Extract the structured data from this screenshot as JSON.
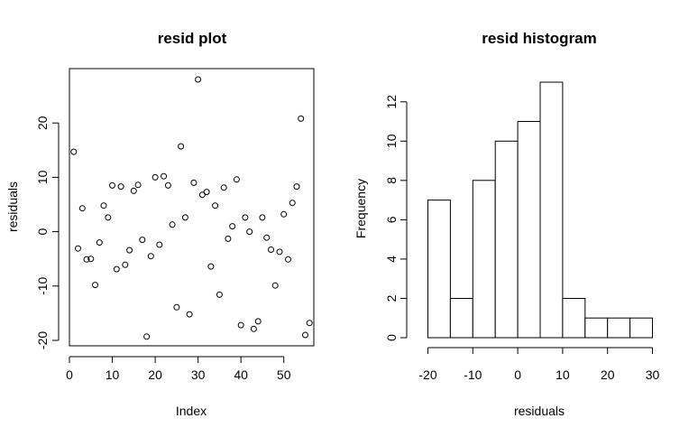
{
  "chart_data": [
    {
      "type": "scatter",
      "title": "resid plot",
      "xlabel": "Index",
      "ylabel": "residuals",
      "xlim": [
        0,
        57
      ],
      "ylim": [
        -21,
        30
      ],
      "xticks": [
        "0",
        "10",
        "20",
        "30",
        "40",
        "50"
      ],
      "yticks": [
        "-20",
        "-10",
        "0",
        "10",
        "20"
      ],
      "x": [
        1,
        2,
        3,
        4,
        5,
        6,
        7,
        8,
        9,
        10,
        11,
        12,
        13,
        14,
        15,
        16,
        17,
        18,
        19,
        20,
        21,
        22,
        23,
        24,
        25,
        26,
        27,
        28,
        29,
        30,
        31,
        32,
        33,
        34,
        35,
        36,
        37,
        38,
        39,
        40,
        41,
        42,
        43,
        44,
        45,
        46,
        47,
        48,
        49,
        50,
        51,
        52,
        53,
        54,
        55,
        56
      ],
      "y": [
        14.7,
        -3.1,
        4.3,
        -5.1,
        -5.0,
        -9.8,
        -2.0,
        4.8,
        2.6,
        8.5,
        -6.9,
        8.3,
        -6.1,
        -3.4,
        7.5,
        8.6,
        -1.5,
        -19.3,
        -4.5,
        10.0,
        -2.4,
        10.2,
        8.5,
        1.3,
        -13.9,
        15.7,
        2.6,
        -15.2,
        9.0,
        28.0,
        6.8,
        7.3,
        -6.4,
        4.8,
        -11.6,
        8.1,
        -1.3,
        1.0,
        9.6,
        -17.2,
        2.6,
        0.0,
        -17.9,
        -16.5,
        2.6,
        -1.1,
        -3.3,
        -9.9,
        -3.7,
        3.2,
        -5.1,
        5.3,
        8.3,
        20.8,
        -19.0,
        -16.8
      ],
      "grid": false,
      "legend": "none"
    },
    {
      "type": "bar",
      "title": "resid histogram",
      "xlabel": "residuals",
      "ylabel": "Frequency",
      "bin_edges": [
        -20,
        -15,
        -10,
        -5,
        0,
        5,
        10,
        15,
        20,
        25,
        30
      ],
      "values": [
        7,
        2,
        8,
        10,
        11,
        13,
        2,
        1,
        1,
        1
      ],
      "xlim": [
        -20,
        30
      ],
      "ylim": [
        0,
        13
      ],
      "xticks": [
        "-20",
        "-10",
        "0",
        "10",
        "20",
        "30"
      ],
      "yticks": [
        "0",
        "2",
        "4",
        "6",
        "8",
        "10",
        "12"
      ],
      "grid": false,
      "legend": "none"
    }
  ]
}
